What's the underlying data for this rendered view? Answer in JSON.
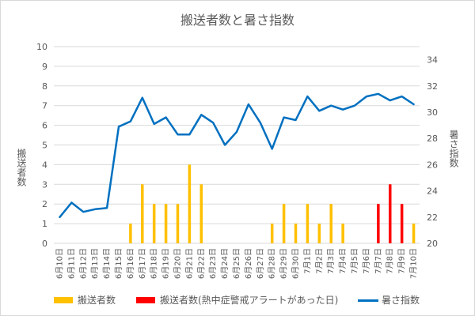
{
  "chart_data": {
    "type": "bar",
    "title": "搬送者数と暑さ指数",
    "ylabel_left": "搬送者数",
    "ylabel_right": "暑さ指数",
    "categories": [
      "6月10日",
      "6月11日",
      "6月12日",
      "6月13日",
      "6月14日",
      "6月15日",
      "6月16日",
      "6月17日",
      "6月18日",
      "6月19日",
      "6月20日",
      "6月21日",
      "6月22日",
      "6月23日",
      "6月24日",
      "6月25日",
      "6月26日",
      "6月27日",
      "6月28日",
      "6月29日",
      "6月30日",
      "7月1日",
      "7月2日",
      "7月3日",
      "7月4日",
      "7月5日",
      "7月6日",
      "7月7日",
      "7月8日",
      "7月9日",
      "7月10日"
    ],
    "y_left": {
      "min": 0,
      "max": 10,
      "ticks": [
        0,
        1,
        2,
        3,
        4,
        5,
        6,
        7,
        8,
        9,
        10
      ]
    },
    "y_right": {
      "min": 20,
      "max": 35,
      "ticks": [
        20,
        22,
        24,
        26,
        28,
        30,
        32,
        34
      ]
    },
    "grid": true,
    "legend_position": "bottom",
    "series": [
      {
        "name": "搬送者数",
        "kind": "bar",
        "color": "#FFC000",
        "values": [
          0,
          0,
          0,
          0,
          0,
          0,
          1,
          3,
          2,
          2,
          2,
          4,
          3,
          0,
          0,
          0,
          0,
          0,
          1,
          2,
          1,
          2,
          1,
          2,
          1,
          0,
          0,
          0,
          0,
          0,
          1
        ]
      },
      {
        "name": "搬送者数(熱中症警戒アラートがあった日)",
        "kind": "bar",
        "color": "#FF0000",
        "values": [
          0,
          0,
          0,
          0,
          0,
          0,
          0,
          0,
          0,
          0,
          0,
          0,
          0,
          0,
          0,
          0,
          0,
          0,
          0,
          0,
          0,
          0,
          0,
          0,
          0,
          0,
          0,
          2,
          3,
          2,
          0
        ]
      },
      {
        "name": "暑さ指数",
        "kind": "line",
        "axis": "right",
        "color": "#0070C0",
        "values": [
          22.0,
          23.1,
          22.4,
          22.6,
          22.7,
          28.9,
          29.3,
          31.1,
          29.1,
          29.6,
          28.3,
          28.3,
          29.8,
          29.2,
          27.5,
          28.5,
          30.6,
          29.2,
          27.2,
          29.6,
          29.4,
          31.2,
          30.1,
          30.5,
          30.2,
          30.5,
          31.2,
          31.4,
          30.9,
          31.2,
          30.6
        ]
      }
    ]
  }
}
